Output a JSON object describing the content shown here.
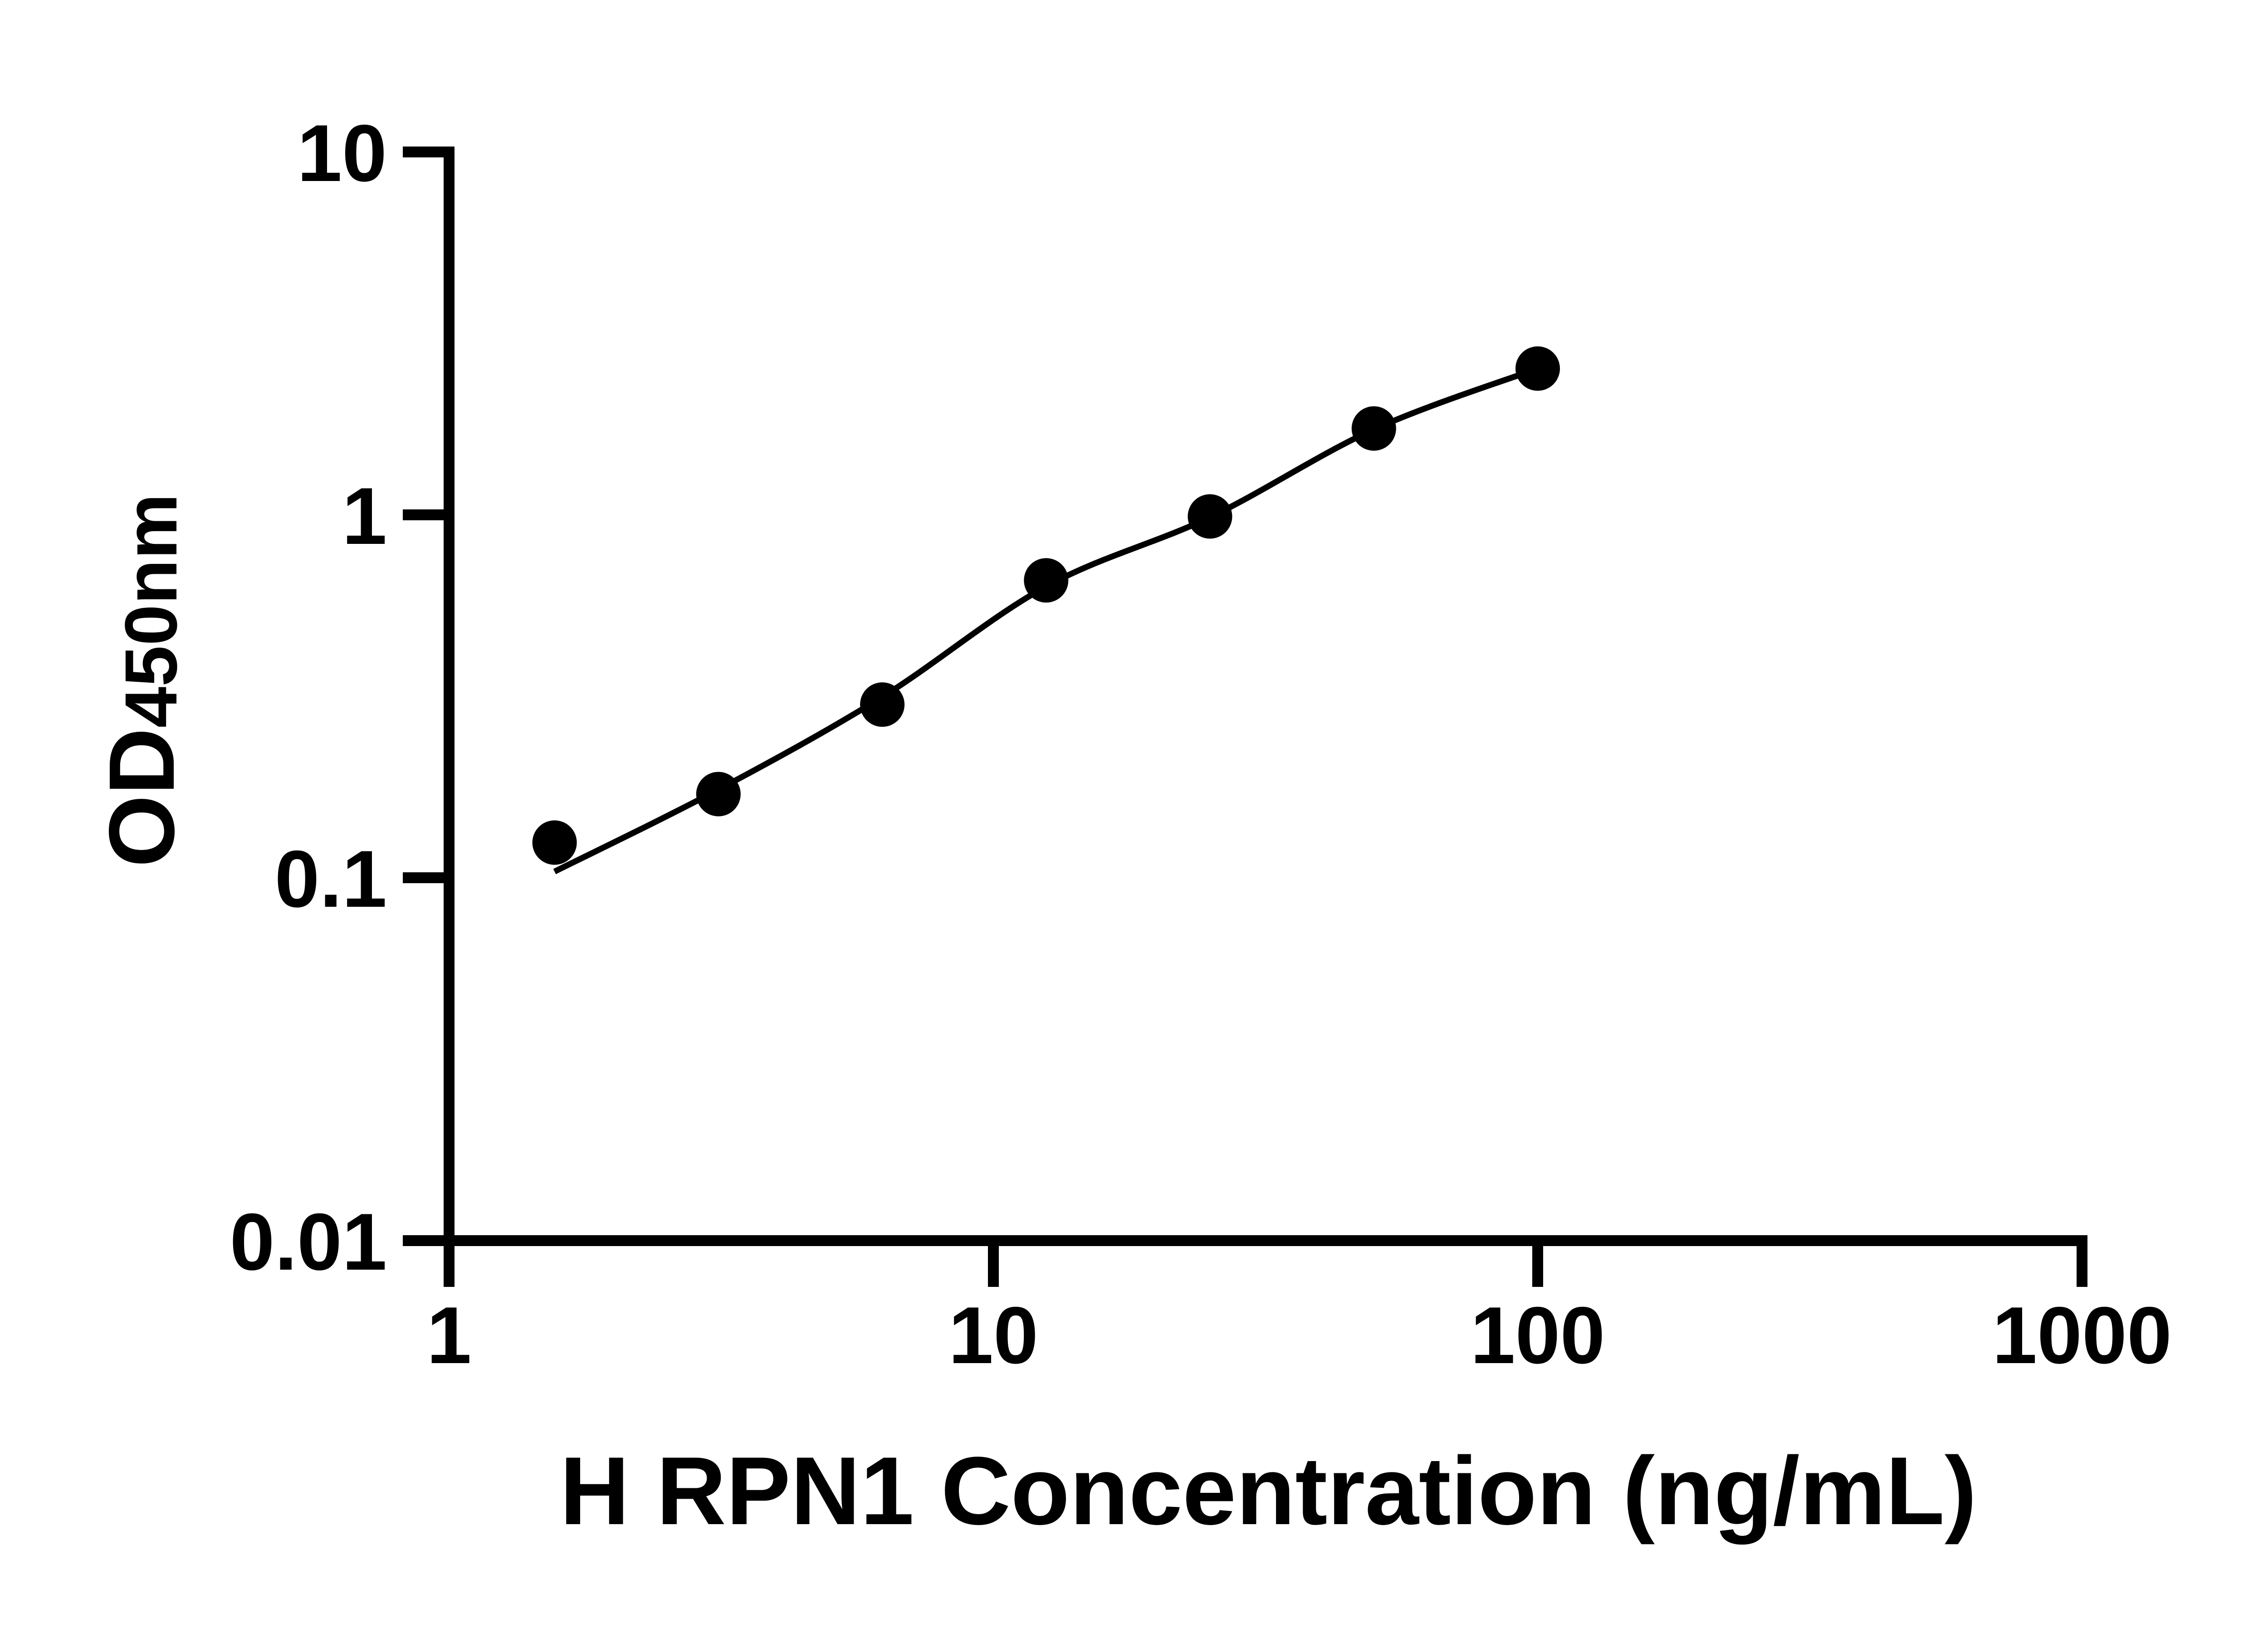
{
  "figure": {
    "background": "#ffffff",
    "ink_color": "#000000"
  },
  "chart_data": {
    "type": "scatter",
    "title": "",
    "xlabel": "H RPN1 Concentration (ng/mL)",
    "ylabel_main": "OD",
    "ylabel_sub": "450nm",
    "x_scale": "log10",
    "y_scale": "log10",
    "x_range": [
      1,
      1000
    ],
    "y_range": [
      0.01,
      10
    ],
    "grid": false,
    "legend": false,
    "x_ticks": {
      "values": [
        1,
        10,
        100,
        1000
      ],
      "labels": [
        "1",
        "10",
        "100",
        "1000"
      ]
    },
    "y_ticks": {
      "values": [
        0.01,
        0.1,
        1,
        10
      ],
      "labels": [
        "0.01",
        "0.1",
        "1",
        "10"
      ]
    },
    "series": [
      {
        "name": "standard-points",
        "type": "scatter",
        "marker": "filled-circle",
        "color": "#000000",
        "x": [
          1.5625,
          3.125,
          6.25,
          12.5,
          25,
          50,
          100
        ],
        "y": [
          0.125,
          0.17,
          0.3,
          0.66,
          0.99,
          1.73,
          2.53
        ]
      },
      {
        "name": "fit-curve",
        "type": "line",
        "color": "#000000",
        "x": [
          1.5625,
          3.125,
          6.25,
          12.5,
          25,
          50,
          100
        ],
        "y": [
          0.104,
          0.175,
          0.315,
          0.635,
          0.985,
          1.72,
          2.53
        ]
      }
    ]
  }
}
